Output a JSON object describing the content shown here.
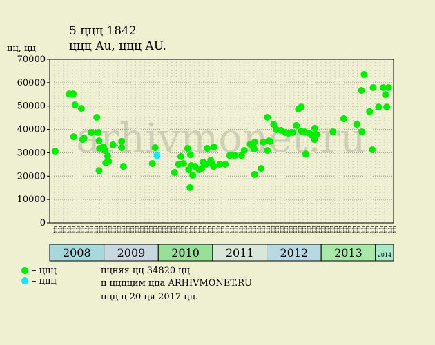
{
  "chart_data": {
    "type": "scatter",
    "title": "5 ццц 1842",
    "subtitle": "ццц Au, ццц AU.",
    "y_label": "цц, цц",
    "watermark": "arhivmonet.ru",
    "ylim": [
      0,
      70000
    ],
    "yticks": [
      0,
      10000,
      20000,
      30000,
      40000,
      50000,
      60000,
      70000
    ],
    "xlim": [
      0,
      76
    ],
    "grid": true,
    "legend": "bottom-left",
    "month_labels": [
      "цц",
      "цц",
      "цц",
      "цц",
      "цц",
      "цц",
      "цц",
      "цц",
      "цц",
      "цц",
      "цц",
      "цц",
      "цц",
      "цц",
      "цц",
      "цц",
      "цц",
      "цц",
      "цц",
      "цц",
      "цц",
      "цц",
      "цц",
      "цц",
      "цц",
      "цц",
      "цц",
      "цц",
      "цц",
      "цц",
      "цц",
      "цц",
      "цц",
      "цц",
      "цц",
      "цц",
      "цц",
      "цц",
      "цц",
      "цц",
      "цц",
      "цц",
      "цц",
      "цц",
      "цц",
      "цц",
      "цц",
      "цц",
      "цц",
      "цц",
      "цц",
      "цц",
      "цц",
      "цц",
      "цц",
      "цц",
      "цц",
      "цц",
      "цц",
      "цц",
      "цц",
      "цц",
      "цц",
      "цц",
      "цц",
      "цц",
      "цц",
      "цц",
      "цц",
      "цц",
      "цц",
      "цц",
      "цц",
      "цц",
      "цц",
      "цц"
    ],
    "years": [
      {
        "label": "2008",
        "start": 0,
        "end": 12,
        "color": "#a6d8dc"
      },
      {
        "label": "2009",
        "start": 12,
        "end": 24,
        "color": "#c8d8e0"
      },
      {
        "label": "2010",
        "start": 24,
        "end": 36,
        "color": "#98e098"
      },
      {
        "label": "2011",
        "start": 36,
        "end": 48,
        "color": "#d8e8d8"
      },
      {
        "label": "2012",
        "start": 48,
        "end": 60,
        "color": "#b8d8e4"
      },
      {
        "label": "2013",
        "start": 60,
        "end": 72,
        "color": "#a8e8a8"
      },
      {
        "label": "2014",
        "start": 72,
        "end": 76,
        "color": "#a8e8c8"
      }
    ],
    "series": [
      {
        "name": "– ццц",
        "color": "#00ee00",
        "x": [
          1.2,
          4.3,
          5.2,
          5.3,
          5.6,
          7.0,
          7.3,
          7.6,
          9.2,
          10.4,
          10.7,
          10.9,
          10.9,
          11.0,
          11.9,
          12.2,
          12.4,
          12.8,
          13.0,
          14.0,
          15.9,
          15.9,
          16.3,
          22.7,
          23.3,
          27.6,
          28.5,
          29.0,
          29.6,
          30.5,
          30.7,
          31.0,
          31.1,
          31.3,
          31.6,
          32.1,
          33.0,
          33.6,
          33.9,
          34.5,
          34.8,
          35.6,
          35.9,
          36.2,
          36.3,
          37.6,
          38.8,
          39.8,
          40.9,
          42.4,
          43.0,
          44.3,
          45.0,
          45.2,
          45.3,
          45.3,
          46.7,
          47.2,
          48.1,
          48.1,
          48.4,
          48.7,
          49.5,
          50.1,
          51.1,
          52.1,
          52.8,
          53.7,
          54.5,
          55.0,
          55.6,
          55.6,
          56.3,
          56.6,
          57.4,
          58.0,
          58.5,
          58.6,
          59.0,
          62.6,
          65.0,
          67.9,
          68.9,
          69.0,
          69.5,
          70.7,
          71.3,
          71.5,
          72.7,
          73.7,
          74.2,
          74.5,
          74.9
        ],
        "values": [
          30700,
          55200,
          55200,
          36900,
          50500,
          49000,
          35700,
          36300,
          38700,
          45200,
          38700,
          35100,
          22400,
          31900,
          32500,
          31000,
          25700,
          28600,
          26300,
          33400,
          34900,
          32200,
          24200,
          25400,
          32200,
          21600,
          25100,
          28400,
          25400,
          31900,
          22700,
          15100,
          29200,
          24500,
          20400,
          24200,
          22700,
          23300,
          26000,
          25100,
          31900,
          26900,
          25400,
          24200,
          32500,
          25100,
          25100,
          28900,
          28900,
          28900,
          31000,
          33700,
          32500,
          31600,
          34600,
          20700,
          23300,
          34600,
          45200,
          31000,
          35100,
          34900,
          42200,
          39900,
          39600,
          38700,
          38400,
          38700,
          41700,
          48700,
          49600,
          39300,
          39000,
          29500,
          38400,
          37500,
          35700,
          40500,
          37800,
          39000,
          44600,
          42200,
          56700,
          39000,
          63500,
          47600,
          31300,
          57900,
          49600,
          57900,
          54900,
          49600,
          57900
        ]
      },
      {
        "name": "– ццц",
        "color": "#00eeff",
        "x": [
          23.7
        ],
        "values": [
          28900
        ]
      }
    ],
    "notes": [
      "ццняя цц 34820 цц",
      "ц ццццим цца ARHIVMONET.RU",
      "ццц ц 20 ця 2017 цц."
    ]
  }
}
